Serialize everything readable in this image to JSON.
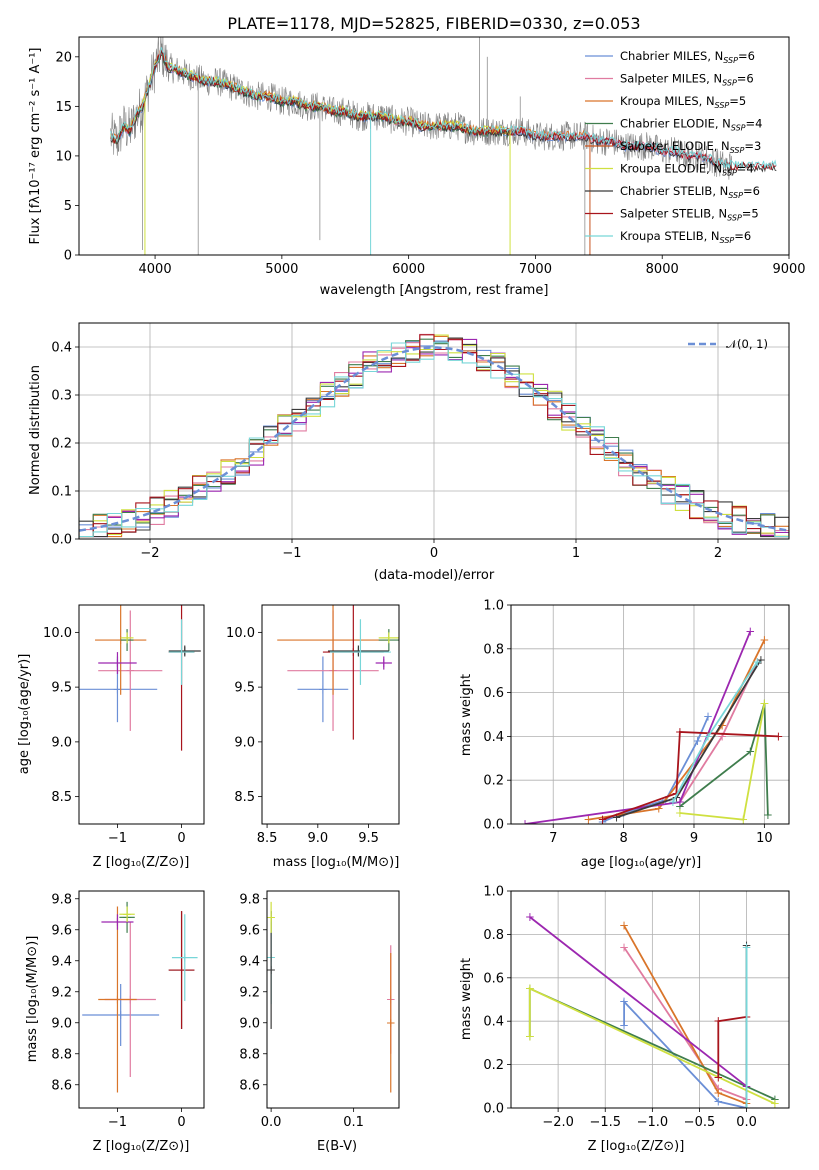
{
  "chart_data": [
    {
      "id": "spectrum",
      "type": "line",
      "title": "PLATE=1178, MJD=52825, FIBERID=0330, z=0.053",
      "xlabel": "wavelength [Angstrom, rest frame]",
      "ylabel": "Flux [fλ10⁻¹⁷ erg cm⁻² s⁻¹ A⁻¹]",
      "xlim": [
        3400,
        9000
      ],
      "ylim": [
        0,
        22
      ],
      "xticks": [
        "4000",
        "5000",
        "6000",
        "7000",
        "8000",
        "9000"
      ],
      "yticks": [
        "0",
        "5",
        "10",
        "15",
        "20"
      ],
      "grid": false,
      "legend_position": "top-right",
      "data_series": {
        "name": "data",
        "color": "#808080",
        "x": [
          3650,
          3700,
          3750,
          3800,
          3850,
          3900,
          3950,
          4000,
          4050,
          4100,
          4200,
          4300,
          4400,
          4500,
          4600,
          4700,
          4800,
          4900,
          5000,
          5100,
          5200,
          5300,
          5400,
          5500,
          5600,
          5700,
          5800,
          5900,
          6000,
          6100,
          6200,
          6300,
          6400,
          6500,
          6600,
          6700,
          6800,
          6900,
          7000,
          7100,
          7200,
          7300,
          7400,
          7500,
          7600,
          7700,
          7800,
          7900,
          8000,
          8100,
          8200,
          8300,
          8400,
          8500
        ],
        "y": [
          12,
          11.5,
          13,
          12.5,
          14,
          15,
          17,
          19,
          20.5,
          19,
          18.5,
          18,
          17.5,
          17.5,
          17,
          16.5,
          16,
          16,
          15.5,
          15.5,
          15,
          15,
          14.5,
          14.5,
          14,
          14,
          14,
          13.5,
          13.5,
          13,
          13,
          13,
          13,
          12.5,
          12.5,
          12.5,
          12.5,
          12.5,
          12,
          12,
          12,
          12,
          12,
          11.5,
          11.5,
          11,
          11,
          11,
          10.5,
          10.5,
          10,
          10,
          9.5,
          9
        ]
      },
      "model_series": [
        {
          "name": "Chabrier MILES, N_SSP=6",
          "label_main": "Chabrier MILES, N",
          "label_sub": "SSP",
          "label_tail": "=6",
          "color": "#6b8fd6",
          "end": 8400
        },
        {
          "name": "Salpeter MILES, N_SSP=6",
          "label_main": "Salpeter MILES, N",
          "label_sub": "SSP",
          "label_tail": "=6",
          "color": "#e07ba0",
          "end": 8400
        },
        {
          "name": "Kroupa MILES, N_SSP=5",
          "label_main": "Kroupa MILES, N",
          "label_sub": "SSP",
          "label_tail": "=5",
          "color": "#d9752a",
          "end": 7400
        },
        {
          "name": "Chabrier ELODIE, N_SSP=4",
          "label_main": "Chabrier ELODIE, N",
          "label_sub": "SSP",
          "label_tail": "=4",
          "color": "#3f7d4d",
          "end": 6800
        },
        {
          "name": "Salpeter ELODIE, N_SSP=3",
          "label_main": "Salpeter ELODIE, N",
          "label_sub": "SSP",
          "label_tail": "=3",
          "color": "#c8541f",
          "end": 6800
        },
        {
          "name": "Kroupa ELODIE, N_SSP=4",
          "label_main": "Kroupa ELODIE, N",
          "label_sub": "SSP",
          "label_tail": "=4",
          "color": "#cfe040",
          "end": 6800
        },
        {
          "name": "Chabrier STELIB, N_SSP=6",
          "label_main": "Chabrier STELIB, N",
          "label_sub": "SSP",
          "label_tail": "=6",
          "color": "#3a3a3a",
          "end": 8900
        },
        {
          "name": "Salpeter STELIB, N_SSP=5",
          "label_main": "Salpeter STELIB, N",
          "label_sub": "SSP",
          "label_tail": "=5",
          "color": "#a8141c",
          "end": 8900
        },
        {
          "name": "Kroupa STELIB, N_SSP=6",
          "label_main": "Kroupa STELIB, N",
          "label_sub": "SSP",
          "label_tail": "=6",
          "color": "#77d6d8",
          "end": 8900
        }
      ]
    },
    {
      "id": "residuals",
      "type": "line",
      "xlabel": "(data-model)/error",
      "ylabel": "Normed distribution",
      "xlim": [
        -2.5,
        2.5
      ],
      "ylim": [
        0,
        0.45
      ],
      "xticks": [
        "−2",
        "−1",
        "0",
        "1",
        "2"
      ],
      "yticks": [
        "0.0",
        "0.1",
        "0.2",
        "0.3",
        "0.4"
      ],
      "grid": true,
      "legend": "𝒩(0, 1)",
      "legend_position": "top-right",
      "gauss": {
        "name": "N(0,1)",
        "color": "#6b8fd6",
        "mu": 0,
        "sigma": 1
      },
      "hist_colors": [
        "#6b8fd6",
        "#e07ba0",
        "#d9752a",
        "#3f7d4d",
        "#9c27b0",
        "#cfe040",
        "#3a3a3a",
        "#a8141c",
        "#77d6d8"
      ]
    },
    {
      "id": "age-vs-Z",
      "type": "scatter",
      "xlabel": "Z [log₁₀(Z/Z⊙)]",
      "ylabel": "age  [log₁₀(age/yr)]",
      "xlim": [
        -1.6,
        0.35
      ],
      "ylim": [
        8.25,
        10.25
      ],
      "xticks": [
        "−1",
        "0"
      ],
      "yticks": [
        "8.5",
        "9.0",
        "9.5",
        "10.0"
      ],
      "grid": false,
      "points": [
        {
          "x": -1.0,
          "y": 9.48,
          "xerr": 0.62,
          "yerr": 0.3,
          "color": "#6b8fd6"
        },
        {
          "x": -0.8,
          "y": 9.65,
          "xerr": 0.5,
          "yerr": 0.55,
          "color": "#e07ba0"
        },
        {
          "x": -0.95,
          "y": 9.93,
          "xerr": 0.4,
          "yerr": 0.5,
          "color": "#d9752a"
        },
        {
          "x": -0.85,
          "y": 9.93,
          "xerr": 0.1,
          "yerr": 0.1,
          "color": "#3f7d4d"
        },
        {
          "x": -1.0,
          "y": 9.72,
          "xerr": 0.3,
          "yerr": 0.1,
          "color": "#9c27b0"
        },
        {
          "x": -0.85,
          "y": 9.95,
          "xerr": 0.1,
          "yerr": 0.05,
          "color": "#cfe040"
        },
        {
          "x": 0.05,
          "y": 9.83,
          "xerr": 0.25,
          "yerr": 0.05,
          "color": "#3a3a3a"
        },
        {
          "x": 0.0,
          "y": 9.82,
          "xerr": 0.2,
          "yerr": 0.9,
          "color": "#a8141c"
        },
        {
          "x": 0.0,
          "y": 9.82,
          "xerr": 0.2,
          "yerr": 0.3,
          "color": "#77d6d8"
        }
      ]
    },
    {
      "id": "age-vs-mass",
      "type": "scatter",
      "xlabel": "mass [log₁₀(M/M⊙)]",
      "xlim": [
        8.45,
        9.8
      ],
      "ylim": [
        8.25,
        10.25
      ],
      "xticks": [
        "8.5",
        "9.0",
        "9.5"
      ],
      "yticks": [
        "8.5",
        "9.0",
        "9.5",
        "10.0"
      ],
      "grid": false,
      "points": [
        {
          "x": 9.05,
          "y": 9.48,
          "xerr": 0.25,
          "yerr": 0.3,
          "color": "#6b8fd6"
        },
        {
          "x": 9.15,
          "y": 9.65,
          "xerr": 0.45,
          "yerr": 0.55,
          "color": "#e07ba0"
        },
        {
          "x": 9.15,
          "y": 9.93,
          "xerr": 0.55,
          "yerr": 0.5,
          "color": "#d9752a"
        },
        {
          "x": 9.7,
          "y": 9.93,
          "xerr": 0.1,
          "yerr": 0.1,
          "color": "#3f7d4d"
        },
        {
          "x": 9.65,
          "y": 9.72,
          "xerr": 0.08,
          "yerr": 0.06,
          "color": "#9c27b0"
        },
        {
          "x": 9.7,
          "y": 9.95,
          "xerr": 0.1,
          "yerr": 0.05,
          "color": "#cfe040"
        },
        {
          "x": 9.4,
          "y": 9.83,
          "xerr": 0.3,
          "yerr": 0.05,
          "color": "#3a3a3a"
        },
        {
          "x": 9.35,
          "y": 9.82,
          "xerr": 0.3,
          "yerr": 0.8,
          "color": "#a8141c"
        },
        {
          "x": 9.42,
          "y": 9.82,
          "xerr": 0.3,
          "yerr": 0.3,
          "color": "#77d6d8"
        }
      ]
    },
    {
      "id": "massweight-vs-age",
      "type": "line",
      "xlabel": "age  [log₁₀(age/yr)]",
      "ylabel": "mass weight",
      "xlim": [
        6.4,
        10.35
      ],
      "ylim": [
        0,
        1.0
      ],
      "xticks": [
        "7",
        "8",
        "9",
        "10"
      ],
      "yticks": [
        "0.0",
        "0.2",
        "0.4",
        "0.6",
        "0.8",
        "1.0"
      ],
      "grid": true,
      "series": [
        {
          "color": "#6b8fd6",
          "x": [
            7.7,
            8.0,
            8.6,
            9.05,
            9.2
          ],
          "y": [
            0.01,
            0.05,
            0.11,
            0.38,
            0.49
          ]
        },
        {
          "color": "#e07ba0",
          "x": [
            8.8,
            9.4,
            9.9
          ],
          "y": [
            0.1,
            0.4,
            0.74
          ]
        },
        {
          "color": "#d9752a",
          "x": [
            7.5,
            8.5,
            9.4,
            10.0
          ],
          "y": [
            0.02,
            0.07,
            0.45,
            0.84
          ]
        },
        {
          "color": "#3f7d4d",
          "x": [
            8.8,
            9.8,
            10.0,
            10.05
          ],
          "y": [
            0.08,
            0.33,
            0.55,
            0.04
          ]
        },
        {
          "color": "#9c27b0",
          "x": [
            6.6,
            8.8,
            9.8
          ],
          "y": [
            0.0,
            0.1,
            0.88
          ]
        },
        {
          "color": "#cfe040",
          "x": [
            8.8,
            9.7,
            10.0
          ],
          "y": [
            0.05,
            0.02,
            0.55
          ]
        },
        {
          "color": "#3a3a3a",
          "x": [
            7.9,
            8.75,
            9.95
          ],
          "y": [
            0.03,
            0.12,
            0.75
          ]
        },
        {
          "color": "#a8141c",
          "x": [
            7.7,
            8.75,
            8.8,
            10.2
          ],
          "y": [
            0.02,
            0.14,
            0.42,
            0.4
          ]
        },
        {
          "color": "#77d6d8",
          "x": [
            8.7,
            9.2,
            9.9
          ],
          "y": [
            0.1,
            0.4,
            0.74
          ]
        }
      ]
    },
    {
      "id": "mass-vs-Z",
      "type": "scatter",
      "xlabel": "Z [log₁₀(Z/Z⊙)]",
      "ylabel": "mass [log₁₀(M/M⊙)]",
      "xlim": [
        -1.6,
        0.35
      ],
      "ylim": [
        8.45,
        9.85
      ],
      "xticks": [
        "−1",
        "0"
      ],
      "yticks": [
        "8.6",
        "8.8",
        "9.0",
        "9.2",
        "9.4",
        "9.6",
        "9.8"
      ],
      "grid": false,
      "points": [
        {
          "x": -0.95,
          "y": 9.05,
          "xerr": 0.6,
          "yerr": 0.2,
          "color": "#6b8fd6"
        },
        {
          "x": -0.8,
          "y": 9.15,
          "xerr": 0.4,
          "yerr": 0.5,
          "color": "#e07ba0"
        },
        {
          "x": -1.0,
          "y": 9.15,
          "xerr": 0.3,
          "yerr": 0.6,
          "color": "#d9752a"
        },
        {
          "x": -0.85,
          "y": 9.68,
          "xerr": 0.12,
          "yerr": 0.1,
          "color": "#3f7d4d"
        },
        {
          "x": -1.0,
          "y": 9.65,
          "xerr": 0.25,
          "yerr": 0.05,
          "color": "#9c27b0"
        },
        {
          "x": -0.85,
          "y": 9.7,
          "xerr": 0.12,
          "yerr": 0.05,
          "color": "#cfe040"
        },
        {
          "x": 0.0,
          "y": 9.34,
          "xerr": 0.2,
          "yerr": 0.38,
          "color": "#3a3a3a"
        },
        {
          "x": 0.0,
          "y": 9.34,
          "xerr": 0.2,
          "yerr": 0.38,
          "color": "#a8141c"
        },
        {
          "x": 0.05,
          "y": 9.42,
          "xerr": 0.2,
          "yerr": 0.28,
          "color": "#77d6d8"
        }
      ]
    },
    {
      "id": "mass-vs-EBV",
      "type": "scatter",
      "xlabel": "E(B-V)",
      "xlim": [
        -0.005,
        0.155
      ],
      "ylim": [
        8.45,
        9.85
      ],
      "xticks": [
        "0.0",
        "0.1"
      ],
      "yticks": [
        "8.6",
        "8.8",
        "9.0",
        "9.2",
        "9.4",
        "9.6",
        "9.8"
      ],
      "grid": false,
      "points": [
        {
          "x": 0.0,
          "y": 9.42,
          "xerr": 0.0,
          "yerr": 0.3,
          "color": "#77d6d8"
        },
        {
          "x": 0.0,
          "y": 9.34,
          "xerr": 0.0,
          "yerr": 0.38,
          "color": "#3a3a3a"
        },
        {
          "x": 0.0,
          "y": 9.68,
          "xerr": 0.0,
          "yerr": 0.1,
          "color": "#cfe040"
        },
        {
          "x": 0.145,
          "y": 9.15,
          "xerr": 0.0,
          "yerr": 0.35,
          "color": "#e07ba0"
        },
        {
          "x": 0.145,
          "y": 9.0,
          "xerr": 0.0,
          "yerr": 0.45,
          "color": "#d9752a"
        }
      ]
    },
    {
      "id": "massweight-vs-Z",
      "type": "line",
      "xlabel": "Z [log₁₀(Z/Z⊙)]",
      "ylabel": "mass weight",
      "xlim": [
        -2.5,
        0.45
      ],
      "ylim": [
        0,
        1.0
      ],
      "xticks": [
        "−2.0",
        "−1.5",
        "−1.0",
        "−0.5",
        "0.0"
      ],
      "yticks": [
        "0.0",
        "0.2",
        "0.4",
        "0.6",
        "0.8",
        "1.0"
      ],
      "grid": true,
      "series": [
        {
          "color": "#6b8fd6",
          "x": [
            -1.3,
            -1.3,
            -0.3,
            0.0
          ],
          "y": [
            0.38,
            0.49,
            0.03,
            0.0
          ]
        },
        {
          "color": "#e07ba0",
          "x": [
            -1.3,
            -0.3,
            0.0
          ],
          "y": [
            0.74,
            0.09,
            0.04
          ]
        },
        {
          "color": "#d9752a",
          "x": [
            -1.3,
            -0.3,
            0.0
          ],
          "y": [
            0.84,
            0.07,
            0.02
          ]
        },
        {
          "color": "#3f7d4d",
          "x": [
            -2.3,
            -2.3,
            0.3
          ],
          "y": [
            0.33,
            0.55,
            0.04
          ]
        },
        {
          "color": "#9c27b0",
          "x": [
            -2.3,
            0.0
          ],
          "y": [
            0.88,
            0.1
          ]
        },
        {
          "color": "#cfe040",
          "x": [
            -2.3,
            -2.3,
            0.3
          ],
          "y": [
            0.33,
            0.55,
            0.02
          ]
        },
        {
          "color": "#3a3a3a",
          "x": [
            0.0,
            0.0
          ],
          "y": [
            0.0,
            0.75
          ]
        },
        {
          "color": "#a8141c",
          "x": [
            -0.3,
            -0.3,
            0.0
          ],
          "y": [
            0.14,
            0.4,
            0.42
          ]
        },
        {
          "color": "#77d6d8",
          "x": [
            0.0,
            0.0
          ],
          "y": [
            0.0,
            0.74
          ]
        }
      ]
    }
  ]
}
